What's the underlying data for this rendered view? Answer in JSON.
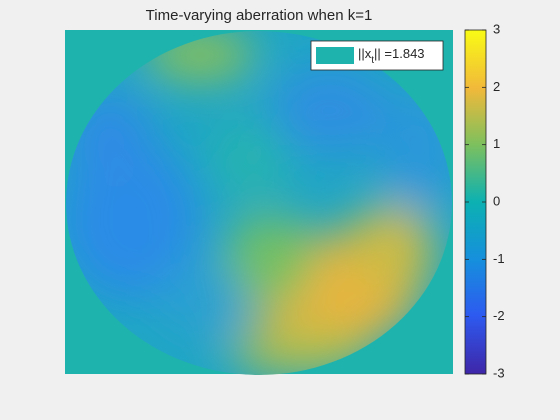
{
  "chart_data": {
    "type": "image",
    "title": "Time-varying aberration when k=1",
    "legend_label": {
      "main": "||x",
      "sub": "t",
      "rest": "|| =1.843"
    },
    "colormap": "parula",
    "clim": [
      -3,
      3
    ],
    "colorbar_ticks": [
      -3,
      -2,
      -1,
      0,
      1,
      2,
      3
    ]
  }
}
